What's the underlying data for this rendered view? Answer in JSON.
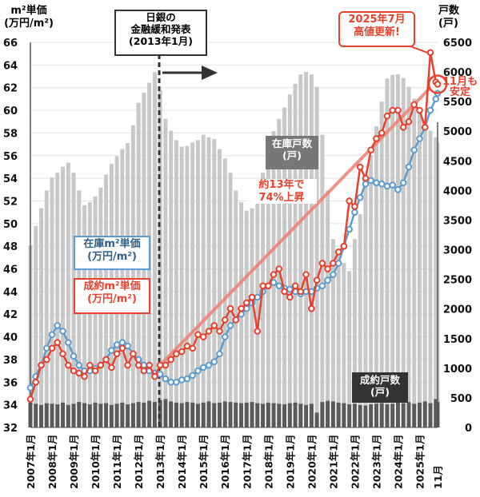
{
  "chart_data": {
    "type": "line",
    "left_axis_title": "m²単価\n(万円/m²)",
    "right_axis_title": "戸数\n(戸)",
    "ylim": [
      32,
      66
    ],
    "y2lim": [
      0,
      6500
    ],
    "yticks": [
      32,
      34,
      36,
      38,
      40,
      42,
      44,
      46,
      48,
      50,
      52,
      54,
      56,
      58,
      60,
      62,
      64,
      66
    ],
    "y2ticks": [
      0,
      500,
      1000,
      1500,
      2000,
      2500,
      3000,
      3500,
      4000,
      4500,
      5000,
      5500,
      6000,
      6500
    ],
    "xticks": [
      "2007年1月",
      "2008年1月",
      "2009年1月",
      "2010年1月",
      "2011年1月",
      "2012年1月",
      "2013年1月",
      "2014年1月",
      "2015年1月",
      "2016年1月",
      "2017年1月",
      "2018年1月",
      "2019年1月",
      "2020年1月",
      "2021年1月",
      "2022年1月",
      "2023年1月",
      "2024年1月",
      "2025年1月",
      "11月"
    ],
    "grid": true,
    "x": [
      "2007-01",
      "2007-04",
      "2007-07",
      "2007-10",
      "2008-01",
      "2008-04",
      "2008-07",
      "2008-10",
      "2009-01",
      "2009-04",
      "2009-07",
      "2009-10",
      "2010-01",
      "2010-04",
      "2010-07",
      "2010-10",
      "2011-01",
      "2011-04",
      "2011-07",
      "2011-10",
      "2012-01",
      "2012-04",
      "2012-07",
      "2012-10",
      "2013-01",
      "2013-04",
      "2013-07",
      "2013-10",
      "2014-01",
      "2014-04",
      "2014-07",
      "2014-10",
      "2015-01",
      "2015-04",
      "2015-07",
      "2015-10",
      "2016-01",
      "2016-04",
      "2016-07",
      "2016-10",
      "2017-01",
      "2017-04",
      "2017-07",
      "2017-10",
      "2018-01",
      "2018-04",
      "2018-07",
      "2018-10",
      "2019-01",
      "2019-04",
      "2019-07",
      "2019-10",
      "2020-01",
      "2020-04",
      "2020-07",
      "2020-10",
      "2021-01",
      "2021-04",
      "2021-07",
      "2021-10",
      "2022-01",
      "2022-04",
      "2022-07",
      "2022-10",
      "2023-01",
      "2023-04",
      "2023-07",
      "2023-10",
      "2024-01",
      "2024-04",
      "2024-07",
      "2024-10",
      "2025-01",
      "2025-04",
      "2025-07",
      "2025-10",
      "2025-11"
    ],
    "series": [
      {
        "name": "在庫m²単価\n(万円/m²)",
        "axis": "left",
        "color": "#5b9bd0",
        "values": [
          35.5,
          36.5,
          37.5,
          39,
          40.2,
          41,
          40.5,
          39.5,
          38.3,
          37.5,
          37,
          37,
          37.2,
          37.5,
          38,
          38.8,
          39.3,
          39.5,
          39.2,
          38.5,
          38,
          37.5,
          37,
          36.8,
          36.7,
          36.3,
          36,
          36,
          36.2,
          36.3,
          36.6,
          37,
          37.3,
          37.5,
          37.8,
          38.5,
          40,
          41,
          41.5,
          42,
          42.5,
          43,
          43.5,
          44,
          44.5,
          44.8,
          44.5,
          44.3,
          44.2,
          44,
          43.8,
          44,
          44,
          44.3,
          44.5,
          45,
          45.5,
          46.5,
          48,
          49.5,
          51,
          52.3,
          53.5,
          53.8,
          53.6,
          53.5,
          53.3,
          53.4,
          53,
          53.6,
          55,
          56.5,
          57.5,
          58.5,
          60,
          61,
          61.5
        ]
      },
      {
        "name": "成約m²単価\n(万円/m²)",
        "axis": "left",
        "color": "#e8412c",
        "values": [
          34.5,
          36,
          37.5,
          38,
          39,
          39.5,
          38.5,
          37.5,
          37,
          36.8,
          36.5,
          37.5,
          37,
          37.5,
          38,
          37.3,
          38.5,
          39,
          37.5,
          38.5,
          37.5,
          37,
          37.5,
          36.5,
          37.5,
          37.5,
          38,
          38.5,
          38.7,
          39.2,
          39,
          40.2,
          40,
          40.5,
          41,
          40.5,
          41.5,
          42.5,
          41.5,
          42.5,
          43,
          43.5,
          40.5,
          44.5,
          44.5,
          45.5,
          46,
          44,
          43.5,
          44.5,
          44,
          45.5,
          42.5,
          45,
          46.5,
          46,
          46.5,
          47.5,
          48,
          52,
          51.5,
          55,
          54,
          56.5,
          57.5,
          58,
          59.5,
          60,
          60,
          58.5,
          59,
          60.5,
          60,
          58.5,
          65.1,
          62.5,
          62.3
        ]
      },
      {
        "name": "在庫戸数\n(戸)",
        "axis": "right",
        "type": "bar",
        "color": "#c8c8c8",
        "values": [
          3070,
          3400,
          3700,
          4000,
          4220,
          4300,
          4400,
          4470,
          4300,
          4000,
          3750,
          3800,
          3900,
          4050,
          4270,
          4450,
          4580,
          4700,
          4800,
          5100,
          5480,
          5650,
          5820,
          6000,
          5690,
          5210,
          5010,
          4850,
          4740,
          4750,
          4810,
          4850,
          4940,
          4900,
          4870,
          4700,
          4540,
          4300,
          4000,
          3800,
          3660,
          3700,
          3930,
          4300,
          4740,
          5000,
          5210,
          5400,
          5620,
          5800,
          5960,
          6000,
          5960,
          5750,
          4940,
          4000,
          3180,
          2900,
          2780,
          2640,
          3180,
          3600,
          4130,
          4600,
          5080,
          5500,
          5890,
          5950,
          5960,
          5900,
          5750,
          5550,
          5350,
          5200,
          5010,
          4900,
          4810
        ]
      },
      {
        "name": "成約戸数\n(戸)",
        "axis": "right",
        "type": "bar",
        "color": "#5a5a5a",
        "values": [
          420,
          400,
          380,
          410,
          400,
          390,
          420,
          380,
          400,
          430,
          410,
          390,
          420,
          400,
          410,
          380,
          400,
          420,
          390,
          410,
          430,
          420,
          450,
          430,
          460,
          480,
          440,
          420,
          410,
          430,
          420,
          400,
          420,
          440,
          410,
          420,
          440,
          430,
          420,
          410,
          420,
          430,
          410,
          400,
          420,
          410,
          400,
          390,
          410,
          420,
          400,
          380,
          400,
          250,
          430,
          450,
          440,
          420,
          410,
          390,
          400,
          380,
          370,
          390,
          400,
          410,
          390,
          400,
          420,
          410,
          430,
          400,
          420,
          440,
          410,
          480,
          430
        ]
      }
    ],
    "trend": {
      "from": {
        "x": "2013-01",
        "y": 37.5
      },
      "to": {
        "x": "2025-07",
        "y": 62
      }
    }
  },
  "annotations": {
    "boj": "日銀の\n金融緩和発表\n(2013年1月)",
    "record": "2025年7月\n高値更新!",
    "stable": "11月も\n安定",
    "rise": "約13年で\n74%上昇",
    "inv_count": "在庫戸数\n(戸)",
    "contract_count": "成約戸数\n(戸)"
  }
}
